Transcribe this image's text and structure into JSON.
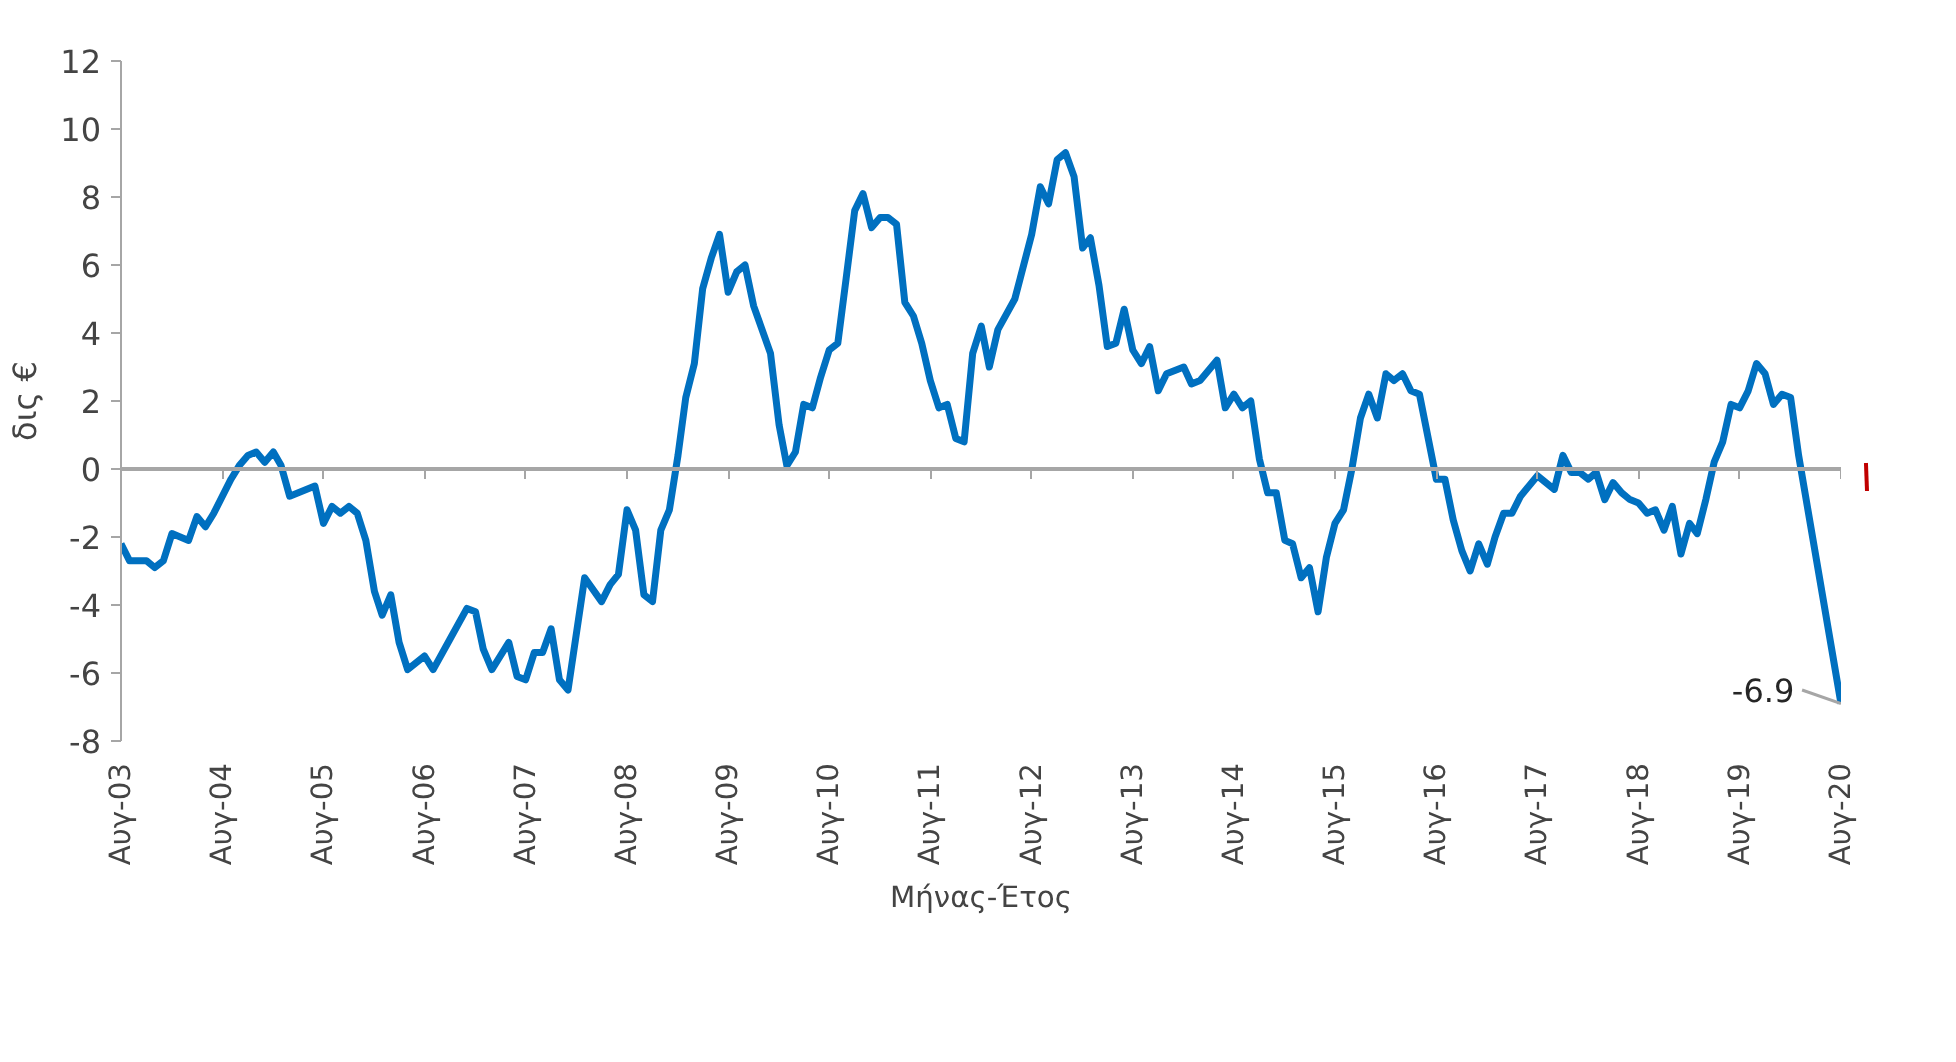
{
  "chart_data": {
    "type": "line",
    "xlabel": "Μήνας-Έτος",
    "ylabel": "δις €",
    "x": [
      "2003-08",
      "2003-09",
      "2003-11",
      "2003-12",
      "2004-01",
      "2004-02",
      "2004-04",
      "2004-05",
      "2004-06",
      "2004-07",
      "2004-09",
      "2004-10",
      "2004-11",
      "2004-12",
      "2005-01",
      "2005-02",
      "2005-03",
      "2005-04",
      "2005-07",
      "2005-08",
      "2005-09",
      "2005-10",
      "2005-11",
      "2005-12",
      "2006-01",
      "2006-02",
      "2006-03",
      "2006-04",
      "2006-05",
      "2006-06",
      "2006-08",
      "2006-09",
      "2006-11",
      "2007-01",
      "2007-02",
      "2007-03",
      "2007-04",
      "2007-06",
      "2007-07",
      "2007-08",
      "2007-09",
      "2007-10",
      "2007-11",
      "2007-12",
      "2008-01",
      "2008-03",
      "2008-05",
      "2008-06",
      "2008-07",
      "2008-08",
      "2008-09",
      "2008-10",
      "2008-11",
      "2008-12",
      "2009-01",
      "2009-02",
      "2009-03",
      "2009-04",
      "2009-05",
      "2009-06",
      "2009-07",
      "2009-08",
      "2009-09",
      "2009-10",
      "2009-11",
      "2010-01",
      "2010-02",
      "2010-03",
      "2010-04",
      "2010-05",
      "2010-06",
      "2010-07",
      "2010-08",
      "2010-09",
      "2010-10",
      "2010-11",
      "2010-12",
      "2011-01",
      "2011-02",
      "2011-03",
      "2011-04",
      "2011-05",
      "2011-06",
      "2011-07",
      "2011-08",
      "2011-09",
      "2011-10",
      "2011-11",
      "2011-12",
      "2012-01",
      "2012-02",
      "2012-03",
      "2012-04",
      "2012-06",
      "2012-08",
      "2012-09",
      "2012-10",
      "2012-11",
      "2012-12",
      "2013-01",
      "2013-02",
      "2013-03",
      "2013-04",
      "2013-05",
      "2013-06",
      "2013-07",
      "2013-08",
      "2013-09",
      "2013-10",
      "2013-11",
      "2013-12",
      "2014-02",
      "2014-03",
      "2014-04",
      "2014-06",
      "2014-07",
      "2014-08",
      "2014-09",
      "2014-10",
      "2014-11",
      "2014-12",
      "2015-01",
      "2015-02",
      "2015-03",
      "2015-04",
      "2015-05",
      "2015-06",
      "2015-07",
      "2015-08",
      "2015-09",
      "2015-10",
      "2015-11",
      "2015-12",
      "2016-01",
      "2016-02",
      "2016-03",
      "2016-04",
      "2016-05",
      "2016-06",
      "2016-08",
      "2016-09",
      "2016-10",
      "2016-11",
      "2016-12",
      "2017-01",
      "2017-02",
      "2017-03",
      "2017-04",
      "2017-05",
      "2017-06",
      "2017-08",
      "2017-10",
      "2017-11",
      "2017-12",
      "2018-01",
      "2018-02",
      "2018-03",
      "2018-04",
      "2018-05",
      "2018-06",
      "2018-07",
      "2018-08",
      "2018-09",
      "2018-10",
      "2018-11",
      "2018-12",
      "2019-01",
      "2019-02",
      "2019-03",
      "2019-04",
      "2019-05",
      "2019-06",
      "2019-07",
      "2019-08",
      "2019-09",
      "2019-10",
      "2019-11",
      "2019-12",
      "2020-01",
      "2020-02",
      "2020-03",
      "2020-08"
    ],
    "series": [
      {
        "color": "#0070c0",
        "values": [
          -2.2,
          -2.7,
          -2.7,
          -2.9,
          -2.7,
          -1.9,
          -2.1,
          -1.4,
          -1.7,
          -1.3,
          -0.3,
          0.1,
          0.4,
          0.5,
          0.2,
          0.5,
          0.1,
          -0.8,
          -0.5,
          -1.6,
          -1.1,
          -1.3,
          -1.1,
          -1.3,
          -2.1,
          -3.6,
          -4.3,
          -3.7,
          -5.1,
          -5.9,
          -5.5,
          -5.9,
          -5.0,
          -4.1,
          -4.2,
          -5.3,
          -5.9,
          -5.1,
          -6.1,
          -6.2,
          -5.4,
          -5.4,
          -4.7,
          -6.2,
          -6.5,
          -3.2,
          -3.9,
          -3.4,
          -3.1,
          -1.2,
          -1.8,
          -3.7,
          -3.9,
          -1.8,
          -1.2,
          0.4,
          2.1,
          3.1,
          5.3,
          6.2,
          6.9,
          5.2,
          5.8,
          6.0,
          4.8,
          3.4,
          1.3,
          0.1,
          0.5,
          1.9,
          1.8,
          2.7,
          3.5,
          3.7,
          5.6,
          7.6,
          8.1,
          7.1,
          7.4,
          7.4,
          7.2,
          4.9,
          4.5,
          3.7,
          2.6,
          1.8,
          1.9,
          0.9,
          0.8,
          3.4,
          4.2,
          3.0,
          4.1,
          5.0,
          6.9,
          8.3,
          7.8,
          9.1,
          9.3,
          8.6,
          6.5,
          6.8,
          5.4,
          3.6,
          3.7,
          4.7,
          3.5,
          3.1,
          3.6,
          2.3,
          2.8,
          3.0,
          2.5,
          2.6,
          3.2,
          1.8,
          2.2,
          1.8,
          2.0,
          0.3,
          -0.7,
          -0.7,
          -2.1,
          -2.2,
          -3.2,
          -2.9,
          -4.2,
          -2.6,
          -1.6,
          -1.2,
          0.0,
          1.5,
          2.2,
          1.5,
          2.8,
          2.6,
          2.8,
          2.3,
          2.2,
          -0.3,
          -0.3,
          -1.5,
          -2.4,
          -3.0,
          -2.2,
          -2.8,
          -2.0,
          -1.3,
          -1.3,
          -0.8,
          -0.2,
          -0.6,
          0.4,
          -0.1,
          -0.1,
          -0.3,
          -0.1,
          -0.9,
          -0.4,
          -0.7,
          -0.9,
          -1.0,
          -1.3,
          -1.2,
          -1.8,
          -1.1,
          -2.5,
          -1.6,
          -1.9,
          -0.9,
          0.2,
          0.8,
          1.9,
          1.8,
          2.3,
          3.1,
          2.8,
          1.9,
          2.2,
          2.1,
          0.4,
          -6.9
        ]
      }
    ],
    "xlim": [
      "2003-08",
      "2020-08"
    ],
    "xticks": [
      {
        "value": "2003-08",
        "label": "Αυγ-03"
      },
      {
        "value": "2004-08",
        "label": "Αυγ-04"
      },
      {
        "value": "2005-08",
        "label": "Αυγ-05"
      },
      {
        "value": "2006-08",
        "label": "Αυγ-06"
      },
      {
        "value": "2007-08",
        "label": "Αυγ-07"
      },
      {
        "value": "2008-08",
        "label": "Αυγ-08"
      },
      {
        "value": "2009-08",
        "label": "Αυγ-09"
      },
      {
        "value": "2010-08",
        "label": "Αυγ-10"
      },
      {
        "value": "2011-08",
        "label": "Αυγ-11"
      },
      {
        "value": "2012-08",
        "label": "Αυγ-12"
      },
      {
        "value": "2013-08",
        "label": "Αυγ-13"
      },
      {
        "value": "2014-08",
        "label": "Αυγ-14"
      },
      {
        "value": "2015-08",
        "label": "Αυγ-15"
      },
      {
        "value": "2016-08",
        "label": "Αυγ-16"
      },
      {
        "value": "2017-08",
        "label": "Αυγ-17"
      },
      {
        "value": "2018-08",
        "label": "Αυγ-18"
      },
      {
        "value": "2019-08",
        "label": "Αυγ-19"
      },
      {
        "value": "2020-08",
        "label": "Αυγ-20"
      }
    ],
    "ylim": [
      -8,
      12
    ],
    "yticks": [
      -8,
      -6,
      -4,
      -2,
      0,
      2,
      4,
      6,
      8,
      10,
      12
    ],
    "annotations": [
      {
        "text": "-6.9",
        "x": "2020-08",
        "y": -6.9
      }
    ],
    "marker": "none",
    "line_style": "solid"
  }
}
